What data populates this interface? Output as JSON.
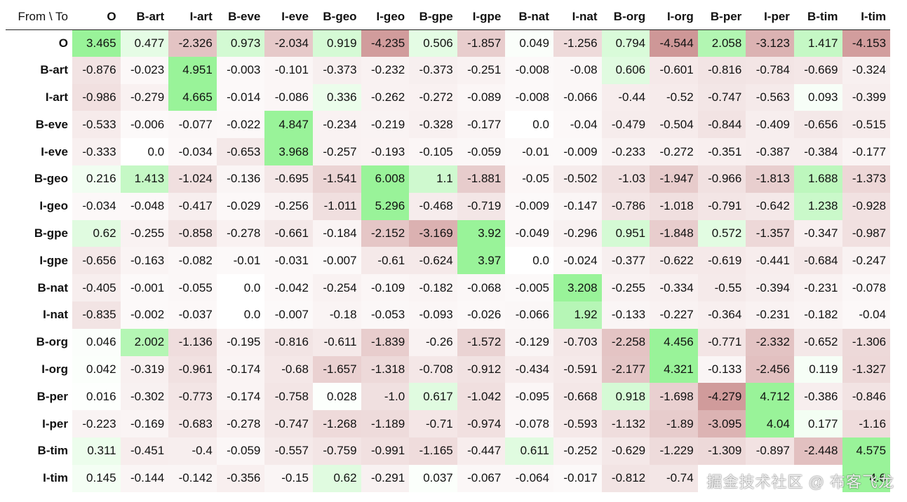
{
  "corner_label": "From \\ To",
  "labels": [
    "O",
    "B-art",
    "I-art",
    "B-eve",
    "I-eve",
    "B-geo",
    "I-geo",
    "B-gpe",
    "I-gpe",
    "B-nat",
    "I-nat",
    "B-org",
    "I-org",
    "B-per",
    "I-per",
    "B-tim",
    "I-tim"
  ],
  "matrix": [
    [
      "3.465",
      "0.477",
      "-2.326",
      "0.973",
      "-2.034",
      "0.919",
      "-4.235",
      "0.506",
      "-1.857",
      "0.049",
      "-1.256",
      "0.794",
      "-4.544",
      "2.058",
      "-3.123",
      "1.417",
      "-4.153"
    ],
    [
      "-0.876",
      "-0.023",
      "4.951",
      "-0.003",
      "-0.101",
      "-0.373",
      "-0.232",
      "-0.373",
      "-0.251",
      "-0.008",
      "-0.08",
      "0.606",
      "-0.601",
      "-0.816",
      "-0.784",
      "-0.669",
      "-0.324"
    ],
    [
      "-0.986",
      "-0.279",
      "4.665",
      "-0.014",
      "-0.086",
      "0.336",
      "-0.262",
      "-0.272",
      "-0.089",
      "-0.008",
      "-0.066",
      "-0.44",
      "-0.52",
      "-0.747",
      "-0.563",
      "0.093",
      "-0.399"
    ],
    [
      "-0.533",
      "-0.006",
      "-0.077",
      "-0.022",
      "4.847",
      "-0.234",
      "-0.219",
      "-0.328",
      "-0.177",
      "0.0",
      "-0.04",
      "-0.479",
      "-0.504",
      "-0.844",
      "-0.409",
      "-0.656",
      "-0.515"
    ],
    [
      "-0.333",
      "0.0",
      "-0.034",
      "-0.653",
      "3.968",
      "-0.257",
      "-0.193",
      "-0.105",
      "-0.059",
      "-0.01",
      "-0.009",
      "-0.233",
      "-0.272",
      "-0.351",
      "-0.387",
      "-0.384",
      "-0.177"
    ],
    [
      "0.216",
      "1.413",
      "-1.024",
      "-0.136",
      "-0.695",
      "-1.541",
      "6.008",
      "1.1",
      "-1.881",
      "-0.05",
      "-0.502",
      "-1.03",
      "-1.947",
      "-0.966",
      "-1.813",
      "1.688",
      "-1.373"
    ],
    [
      "-0.034",
      "-0.048",
      "-0.417",
      "-0.029",
      "-0.256",
      "-1.011",
      "5.296",
      "-0.468",
      "-0.719",
      "-0.009",
      "-0.147",
      "-0.786",
      "-1.018",
      "-0.791",
      "-0.642",
      "1.238",
      "-0.928"
    ],
    [
      "0.62",
      "-0.255",
      "-0.858",
      "-0.278",
      "-0.661",
      "-0.184",
      "-2.152",
      "-3.169",
      "3.92",
      "-0.049",
      "-0.296",
      "0.951",
      "-1.848",
      "0.572",
      "-1.357",
      "-0.347",
      "-0.987"
    ],
    [
      "-0.656",
      "-0.163",
      "-0.082",
      "-0.01",
      "-0.031",
      "-0.007",
      "-0.61",
      "-0.624",
      "3.97",
      "0.0",
      "-0.024",
      "-0.377",
      "-0.622",
      "-0.619",
      "-0.441",
      "-0.684",
      "-0.247"
    ],
    [
      "-0.405",
      "-0.001",
      "-0.055",
      "0.0",
      "-0.042",
      "-0.254",
      "-0.109",
      "-0.182",
      "-0.068",
      "-0.005",
      "3.208",
      "-0.255",
      "-0.334",
      "-0.55",
      "-0.394",
      "-0.231",
      "-0.078"
    ],
    [
      "-0.835",
      "-0.002",
      "-0.037",
      "0.0",
      "-0.007",
      "-0.18",
      "-0.053",
      "-0.093",
      "-0.026",
      "-0.066",
      "1.92",
      "-0.133",
      "-0.227",
      "-0.364",
      "-0.231",
      "-0.182",
      "-0.04"
    ],
    [
      "0.046",
      "2.002",
      "-1.136",
      "-0.195",
      "-0.816",
      "-0.611",
      "-1.839",
      "-0.26",
      "-1.572",
      "-0.129",
      "-0.703",
      "-2.258",
      "4.456",
      "-0.771",
      "-2.332",
      "-0.652",
      "-1.306"
    ],
    [
      "0.042",
      "-0.319",
      "-0.961",
      "-0.174",
      "-0.68",
      "-1.657",
      "-1.318",
      "-0.708",
      "-0.912",
      "-0.434",
      "-0.591",
      "-2.177",
      "4.321",
      "-0.133",
      "-2.456",
      "0.119",
      "-1.327"
    ],
    [
      "0.016",
      "-0.302",
      "-0.773",
      "-0.174",
      "-0.758",
      "0.028",
      "-1.0",
      "0.617",
      "-1.042",
      "-0.095",
      "-0.668",
      "0.918",
      "-1.698",
      "-4.279",
      "4.712",
      "-0.386",
      "-0.846"
    ],
    [
      "-0.223",
      "-0.169",
      "-0.683",
      "-0.278",
      "-0.747",
      "-1.268",
      "-1.189",
      "-0.71",
      "-0.974",
      "-0.078",
      "-0.593",
      "-1.132",
      "-1.89",
      "-3.095",
      "4.04",
      "0.177",
      "-1.16"
    ],
    [
      "0.311",
      "-0.451",
      "-0.4",
      "-0.059",
      "-0.557",
      "-0.759",
      "-0.991",
      "-1.165",
      "-0.447",
      "0.611",
      "-0.252",
      "-0.629",
      "-1.229",
      "-1.309",
      "-0.897",
      "-2.448",
      "4.575"
    ],
    [
      "0.145",
      "-0.144",
      "-0.142",
      "-0.356",
      "-0.15",
      "0.62",
      "-0.291",
      "0.037",
      "-0.067",
      "-0.064",
      "-0.017",
      "-0.812",
      "-0.74",
      "",
      "",
      "",
      "4.6"
    ]
  ],
  "colors": {
    "positive": "#99f399",
    "negative": "#c98b8b",
    "background": "#ffffff"
  },
  "watermark": "掘金技术社区 @ 布客飞龙"
}
